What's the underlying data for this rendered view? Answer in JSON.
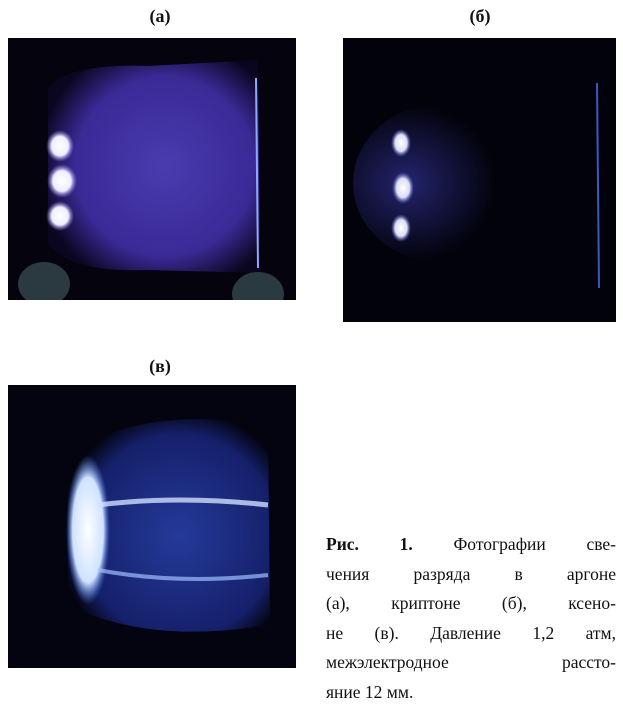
{
  "figure": {
    "panels": [
      {
        "label": "(а)"
      },
      {
        "label": "(б)"
      },
      {
        "label": "(в)"
      }
    ],
    "caption": {
      "label": "Рис. 1.",
      "lines": [
        "Фотографии све-",
        "чения разряда в аргоне",
        "(а), криптоне (б), ксено-",
        "не (в). Давление 1,2 атм,",
        "межэлектродное рассто-",
        "яние 12 мм."
      ]
    }
  }
}
